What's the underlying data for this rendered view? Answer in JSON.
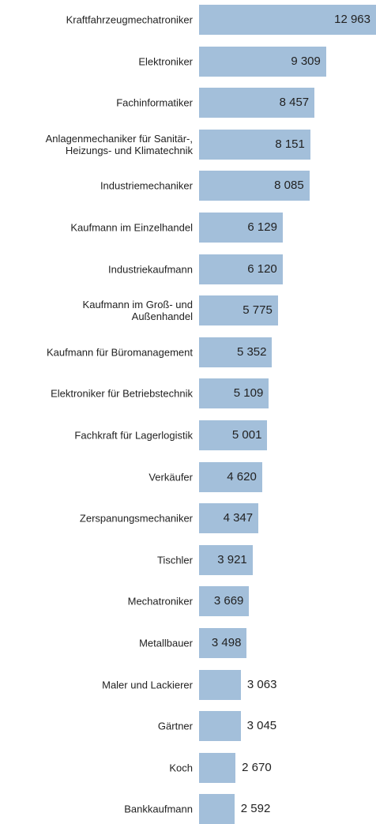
{
  "chart_data": {
    "type": "bar",
    "orientation": "horizontal",
    "color": "#a3bfda",
    "categories": [
      "Kraftfahrzeugmechatroniker",
      "Elektroniker",
      "Fachinformatiker",
      "Anlagenmechaniker für Sanitär-,\nHeizungs- und Klimatechnik",
      "Industriemechaniker",
      "Kaufmann im Einzelhandel",
      "Industriekaufmann",
      "Kaufmann im Groß- und\nAußenhandel",
      "Kaufmann für Büromanagement",
      "Elektroniker für Betriebstechnik",
      "Fachkraft für Lagerlogistik",
      "Verkäufer",
      "Zerspanungsmechaniker",
      "Tischler",
      "Mechatroniker",
      "Metallbauer",
      "Maler und Lackierer",
      "Gärtner",
      "Koch",
      "Bankkaufmann"
    ],
    "values": [
      12963,
      9309,
      8457,
      8151,
      8085,
      6129,
      6120,
      5775,
      5352,
      5109,
      5001,
      4620,
      4347,
      3921,
      3669,
      3498,
      3063,
      3045,
      2670,
      2592
    ],
    "value_labels": [
      "12 963",
      "9 309",
      "8 457",
      "8 151",
      "8 085",
      "6 129",
      "6 120",
      "5 775",
      "5 352",
      "5 109",
      "5 001",
      "4 620",
      "4 347",
      "3 921",
      "3 669",
      "3 498",
      "3 063",
      "3 045",
      "2 670",
      "2 592"
    ]
  }
}
